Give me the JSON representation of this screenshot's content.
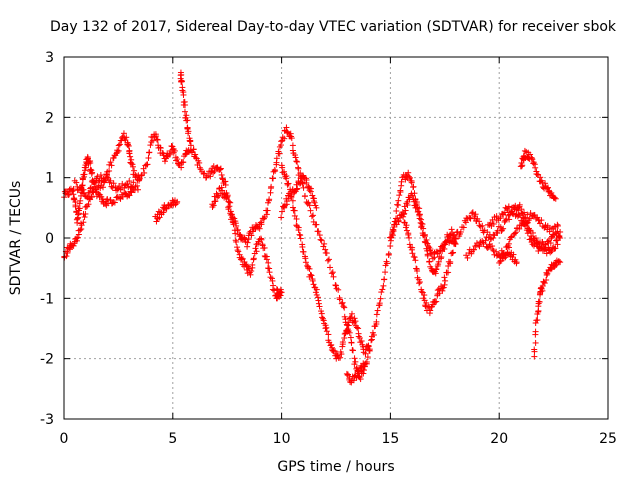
{
  "colors": {
    "series": "#ff0000",
    "grid": "#a0a0a0",
    "axis": "#000000",
    "background": "#ffffff"
  },
  "chart_data": {
    "type": "scatter",
    "title": "Day 132 of 2017, Sidereal Day-to-day VTEC variation (SDTVAR) for receiver sbok",
    "xlabel": "GPS time / hours",
    "ylabel": "SDTVAR / TECUs",
    "xlim": [
      0,
      25
    ],
    "ylim": [
      -3,
      3
    ],
    "xticks": [
      0,
      5,
      10,
      15,
      20,
      25
    ],
    "yticks": [
      -3,
      -2,
      -1,
      0,
      1,
      2,
      3
    ],
    "grid": true,
    "marker": "plus",
    "series": [
      {
        "name": "sbok",
        "approx_traces": [
          [
            [
              0.0,
              0.7
            ],
            [
              0.2,
              0.75
            ],
            [
              0.4,
              0.8
            ],
            [
              0.5,
              0.6
            ],
            [
              0.6,
              0.3
            ],
            [
              0.7,
              0.5
            ],
            [
              0.8,
              0.8
            ],
            [
              0.9,
              1.0
            ],
            [
              1.0,
              1.2
            ],
            [
              1.1,
              1.3
            ],
            [
              1.2,
              1.2
            ],
            [
              1.3,
              1.0
            ],
            [
              1.5,
              0.8
            ],
            [
              1.8,
              0.9
            ],
            [
              2.0,
              1.1
            ],
            [
              2.3,
              1.3
            ],
            [
              2.5,
              1.5
            ],
            [
              2.7,
              1.7
            ],
            [
              2.9,
              1.6
            ],
            [
              3.0,
              1.4
            ],
            [
              3.1,
              1.2
            ],
            [
              3.3,
              1.0
            ],
            [
              3.5,
              1.0
            ],
            [
              3.8,
              1.2
            ],
            [
              4.0,
              1.6
            ],
            [
              4.2,
              1.7
            ],
            [
              4.4,
              1.5
            ],
            [
              4.6,
              1.3
            ],
            [
              4.8,
              1.4
            ],
            [
              5.0,
              1.5
            ],
            [
              5.2,
              1.3
            ],
            [
              5.4,
              1.2
            ],
            [
              5.6,
              1.4
            ],
            [
              5.8,
              1.5
            ],
            [
              6.0,
              1.4
            ],
            [
              6.2,
              1.2
            ],
            [
              6.5,
              1.0
            ],
            [
              6.8,
              1.1
            ],
            [
              7.0,
              1.2
            ],
            [
              7.2,
              1.1
            ],
            [
              7.4,
              0.9
            ],
            [
              7.6,
              0.6
            ],
            [
              7.8,
              0.3
            ],
            [
              8.0,
              0.1
            ],
            [
              8.2,
              0.0
            ],
            [
              8.4,
              -0.1
            ],
            [
              8.6,
              0.1
            ],
            [
              8.8,
              0.2
            ],
            [
              9.0,
              0.2
            ],
            [
              9.2,
              0.3
            ],
            [
              9.4,
              0.6
            ],
            [
              9.6,
              1.0
            ],
            [
              9.8,
              1.3
            ],
            [
              10.0,
              1.6
            ],
            [
              10.2,
              1.8
            ],
            [
              10.4,
              1.7
            ],
            [
              10.6,
              1.4
            ],
            [
              10.8,
              1.1
            ],
            [
              11.0,
              0.8
            ],
            [
              11.3,
              0.5
            ],
            [
              11.6,
              0.2
            ],
            [
              11.9,
              -0.1
            ],
            [
              12.2,
              -0.4
            ],
            [
              12.5,
              -0.8
            ],
            [
              12.8,
              -1.1
            ],
            [
              13.0,
              -1.4
            ],
            [
              13.2,
              -1.7
            ],
            [
              13.4,
              -2.1
            ],
            [
              13.6,
              -2.3
            ],
            [
              13.8,
              -2.2
            ],
            [
              14.0,
              -1.9
            ],
            [
              14.2,
              -1.6
            ],
            [
              14.4,
              -1.3
            ],
            [
              14.6,
              -0.9
            ],
            [
              14.8,
              -0.5
            ],
            [
              15.0,
              -0.1
            ],
            [
              15.2,
              0.3
            ],
            [
              15.4,
              0.7
            ],
            [
              15.6,
              1.0
            ],
            [
              15.8,
              1.05
            ],
            [
              16.0,
              0.9
            ],
            [
              16.2,
              0.6
            ],
            [
              16.4,
              0.3
            ],
            [
              16.6,
              0.0
            ],
            [
              16.8,
              -0.2
            ],
            [
              17.0,
              -0.3
            ],
            [
              17.3,
              -0.2
            ],
            [
              17.6,
              -0.1
            ],
            [
              17.9,
              0.0
            ],
            [
              18.2,
              0.1
            ],
            [
              18.5,
              0.3
            ],
            [
              18.8,
              0.4
            ],
            [
              19.0,
              0.3
            ],
            [
              19.3,
              0.1
            ],
            [
              19.6,
              0.0
            ],
            [
              19.9,
              0.1
            ],
            [
              20.2,
              0.2
            ],
            [
              20.5,
              0.4
            ],
            [
              20.8,
              0.5
            ],
            [
              21.0,
              0.5
            ],
            [
              21.2,
              0.3
            ],
            [
              21.4,
              0.1
            ],
            [
              21.6,
              0.0
            ],
            [
              21.8,
              -0.1
            ],
            [
              22.0,
              -0.1
            ],
            [
              22.2,
              -0.2
            ],
            [
              22.4,
              -0.2
            ],
            [
              22.6,
              -0.1
            ],
            [
              22.8,
              0.0
            ]
          ],
          [
            [
              0.0,
              -0.3
            ],
            [
              0.2,
              -0.2
            ],
            [
              0.4,
              -0.1
            ],
            [
              0.6,
              0.0
            ],
            [
              0.8,
              0.2
            ],
            [
              1.0,
              0.5
            ],
            [
              1.2,
              0.7
            ],
            [
              1.4,
              0.8
            ],
            [
              1.6,
              0.7
            ],
            [
              1.8,
              0.6
            ],
            [
              2.0,
              0.6
            ],
            [
              2.3,
              0.6
            ],
            [
              2.6,
              0.7
            ],
            [
              2.9,
              0.7
            ],
            [
              3.2,
              0.8
            ]
          ],
          [
            [
              0.5,
              0.9
            ],
            [
              0.8,
              0.8
            ],
            [
              1.0,
              0.7
            ],
            [
              1.3,
              0.9
            ],
            [
              1.6,
              1.0
            ],
            [
              1.9,
              1.0
            ],
            [
              2.2,
              0.9
            ],
            [
              2.5,
              0.8
            ],
            [
              2.8,
              0.9
            ],
            [
              3.1,
              0.9
            ],
            [
              3.4,
              0.8
            ]
          ],
          [
            [
              5.35,
              2.7
            ],
            [
              5.4,
              2.6
            ],
            [
              5.5,
              2.3
            ],
            [
              5.6,
              2.0
            ],
            [
              5.7,
              1.8
            ],
            [
              5.8,
              1.6
            ]
          ],
          [
            [
              4.2,
              0.3
            ],
            [
              4.4,
              0.4
            ],
            [
              4.6,
              0.5
            ],
            [
              4.8,
              0.5
            ],
            [
              5.0,
              0.6
            ],
            [
              5.2,
              0.6
            ]
          ],
          [
            [
              6.8,
              0.5
            ],
            [
              7.0,
              0.7
            ],
            [
              7.2,
              0.8
            ],
            [
              7.4,
              0.7
            ],
            [
              7.6,
              0.5
            ],
            [
              7.8,
              0.2
            ],
            [
              8.0,
              -0.2
            ],
            [
              8.2,
              -0.4
            ],
            [
              8.4,
              -0.5
            ],
            [
              8.6,
              -0.6
            ],
            [
              8.8,
              -0.2
            ],
            [
              9.0,
              0.0
            ],
            [
              9.2,
              -0.2
            ],
            [
              9.4,
              -0.5
            ],
            [
              9.6,
              -0.8
            ],
            [
              9.8,
              -1.0
            ]
          ],
          [
            [
              10.0,
              1.2
            ],
            [
              10.2,
              1.0
            ],
            [
              10.4,
              0.8
            ],
            [
              10.6,
              0.4
            ],
            [
              10.8,
              0.1
            ],
            [
              11.0,
              -0.2
            ],
            [
              11.2,
              -0.5
            ],
            [
              11.4,
              -0.7
            ],
            [
              11.6,
              -0.9
            ],
            [
              11.8,
              -1.2
            ],
            [
              12.0,
              -1.4
            ],
            [
              12.2,
              -1.7
            ],
            [
              12.4,
              -1.9
            ],
            [
              12.6,
              -2.0
            ],
            [
              12.8,
              -1.8
            ],
            [
              13.0,
              -1.5
            ],
            [
              13.2,
              -1.3
            ],
            [
              13.4,
              -1.4
            ],
            [
              13.6,
              -1.7
            ],
            [
              13.8,
              -1.9
            ],
            [
              14.0,
              -1.8
            ]
          ],
          [
            [
              10.0,
              0.4
            ],
            [
              10.2,
              0.6
            ],
            [
              10.4,
              0.7
            ],
            [
              10.6,
              0.8
            ],
            [
              10.8,
              0.9
            ],
            [
              11.0,
              1.0
            ],
            [
              11.2,
              0.9
            ],
            [
              11.4,
              0.7
            ],
            [
              11.6,
              0.5
            ]
          ],
          [
            [
              15.6,
              0.3
            ],
            [
              15.8,
              0.1
            ],
            [
              16.0,
              -0.2
            ],
            [
              16.2,
              -0.5
            ],
            [
              16.4,
              -0.8
            ],
            [
              16.6,
              -1.1
            ],
            [
              16.8,
              -1.2
            ],
            [
              17.0,
              -1.1
            ],
            [
              17.2,
              -0.9
            ],
            [
              17.4,
              -0.8
            ],
            [
              17.6,
              -0.6
            ],
            [
              17.8,
              -0.3
            ],
            [
              18.0,
              0.0
            ]
          ],
          [
            [
              15.0,
              0.0
            ],
            [
              15.2,
              0.2
            ],
            [
              15.4,
              0.3
            ],
            [
              15.6,
              0.4
            ],
            [
              15.8,
              0.6
            ],
            [
              16.0,
              0.7
            ],
            [
              16.2,
              0.5
            ],
            [
              16.4,
              0.2
            ],
            [
              16.6,
              -0.1
            ],
            [
              16.8,
              -0.4
            ],
            [
              17.0,
              -0.6
            ],
            [
              17.2,
              -0.4
            ],
            [
              17.4,
              -0.2
            ],
            [
              17.6,
              0.0
            ],
            [
              17.8,
              0.1
            ],
            [
              18.0,
              -0.1
            ]
          ],
          [
            [
              18.5,
              -0.3
            ],
            [
              18.8,
              -0.2
            ],
            [
              19.1,
              -0.1
            ],
            [
              19.4,
              -0.1
            ],
            [
              19.7,
              -0.2
            ],
            [
              20.0,
              -0.3
            ],
            [
              20.3,
              -0.2
            ],
            [
              20.6,
              0.0
            ],
            [
              20.9,
              0.2
            ],
            [
              21.2,
              0.3
            ],
            [
              21.5,
              0.4
            ],
            [
              21.8,
              0.3
            ],
            [
              22.1,
              0.2
            ],
            [
              22.4,
              0.1
            ],
            [
              22.7,
              0.2
            ]
          ],
          [
            [
              21.0,
              1.2
            ],
            [
              21.1,
              1.3
            ],
            [
              21.2,
              1.4
            ],
            [
              21.4,
              1.35
            ],
            [
              21.6,
              1.2
            ],
            [
              21.8,
              1.0
            ],
            [
              22.0,
              0.9
            ],
            [
              22.2,
              0.8
            ],
            [
              22.4,
              0.7
            ],
            [
              22.6,
              0.65
            ]
          ],
          [
            [
              21.6,
              -2.0
            ],
            [
              21.7,
              -1.4
            ],
            [
              21.8,
              -1.1
            ],
            [
              21.9,
              -0.9
            ],
            [
              22.0,
              -0.8
            ],
            [
              22.2,
              -0.6
            ],
            [
              22.4,
              -0.5
            ],
            [
              22.6,
              -0.45
            ],
            [
              22.8,
              -0.4
            ]
          ],
          [
            [
              19.5,
              0.2
            ],
            [
              19.8,
              0.3
            ],
            [
              20.1,
              0.4
            ],
            [
              20.4,
              0.5
            ],
            [
              20.7,
              0.45
            ],
            [
              21.0,
              0.3
            ],
            [
              21.3,
              0.1
            ],
            [
              21.6,
              -0.1
            ],
            [
              21.9,
              -0.2
            ],
            [
              22.2,
              -0.1
            ],
            [
              22.5,
              0.0
            ],
            [
              22.8,
              0.1
            ]
          ],
          [
            [
              20.0,
              -0.4
            ],
            [
              20.2,
              -0.3
            ],
            [
              20.4,
              -0.2
            ],
            [
              20.6,
              -0.3
            ],
            [
              20.8,
              -0.4
            ]
          ],
          [
            [
              13.0,
              -2.3
            ],
            [
              13.2,
              -2.35
            ],
            [
              13.4,
              -2.3
            ],
            [
              13.6,
              -2.2
            ],
            [
              13.8,
              -2.1
            ]
          ],
          [
            [
              9.8,
              -0.9
            ],
            [
              9.9,
              -0.95
            ],
            [
              10.0,
              -0.9
            ]
          ]
        ]
      }
    ]
  }
}
